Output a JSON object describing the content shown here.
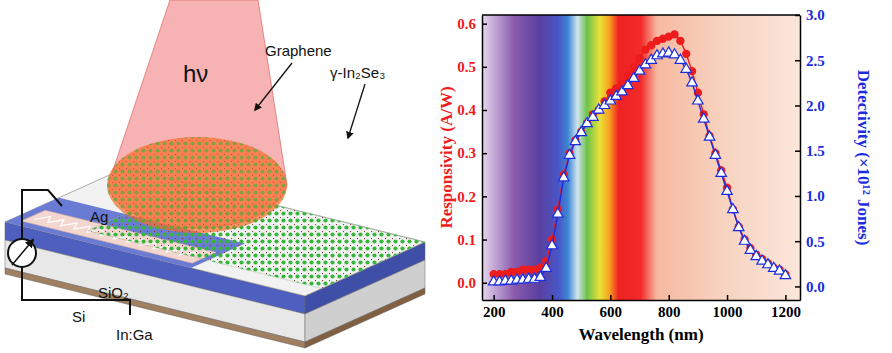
{
  "chart_data": {
    "type": "line",
    "x_label": "Wavelength (nm)",
    "y_label": "Responsivity (A/W)",
    "y2_label": "Detectivity (×10¹² Jones)",
    "x": [
      200,
      220,
      240,
      260,
      280,
      300,
      320,
      340,
      360,
      380,
      400,
      420,
      440,
      460,
      480,
      500,
      520,
      540,
      560,
      580,
      600,
      620,
      640,
      660,
      680,
      700,
      720,
      740,
      760,
      780,
      800,
      820,
      840,
      860,
      880,
      900,
      920,
      940,
      960,
      980,
      1000,
      1020,
      1040,
      1060,
      1080,
      1100,
      1120,
      1140,
      1160,
      1180,
      1200
    ],
    "series": [
      {
        "name": "Responsivity",
        "color": "#ee1c1c",
        "marker": "circle",
        "line_style": "solid",
        "values": [
          0.02,
          0.02,
          0.02,
          0.025,
          0.025,
          0.03,
          0.03,
          0.03,
          0.035,
          0.05,
          0.1,
          0.17,
          0.25,
          0.3,
          0.33,
          0.35,
          0.37,
          0.39,
          0.4,
          0.42,
          0.44,
          0.45,
          0.46,
          0.48,
          0.5,
          0.52,
          0.54,
          0.55,
          0.56,
          0.565,
          0.57,
          0.575,
          0.56,
          0.53,
          0.49,
          0.44,
          0.39,
          0.34,
          0.3,
          0.26,
          0.22,
          0.17,
          0.13,
          0.1,
          0.08,
          0.065,
          0.055,
          0.045,
          0.035,
          0.03,
          0.02
        ]
      },
      {
        "name": "Detectivity",
        "color": "#1a2ee0",
        "marker": "triangle-open",
        "line_style": "solid",
        "axis": "y2",
        "values": [
          0.05,
          0.05,
          0.06,
          0.06,
          0.07,
          0.07,
          0.08,
          0.08,
          0.1,
          0.2,
          0.45,
          0.8,
          1.2,
          1.45,
          1.6,
          1.7,
          1.8,
          1.87,
          1.95,
          2.0,
          2.05,
          2.1,
          2.15,
          2.22,
          2.3,
          2.38,
          2.45,
          2.5,
          2.55,
          2.57,
          2.58,
          2.56,
          2.5,
          2.4,
          2.25,
          2.05,
          1.85,
          1.65,
          1.45,
          1.25,
          1.05,
          0.85,
          0.65,
          0.5,
          0.4,
          0.33,
          0.28,
          0.24,
          0.2,
          0.17,
          0.12
        ]
      }
    ],
    "xlim": [
      160,
      1250
    ],
    "xticks": [
      200,
      400,
      600,
      800,
      1000,
      1200
    ],
    "ylim": [
      -0.04,
      0.62
    ],
    "yticks": [
      {
        "value": 0,
        "label": "0.0"
      },
      {
        "value": 0.1,
        "label": "0.1"
      },
      {
        "value": 0.2,
        "label": "0.2"
      },
      {
        "value": 0.3,
        "label": "0.3"
      },
      {
        "value": 0.4,
        "label": "0.4"
      },
      {
        "value": 0.5,
        "label": "0.5"
      },
      {
        "value": 0.6,
        "label": "0.6"
      }
    ],
    "y2lim": [
      -0.15,
      3.0
    ],
    "y2ticks": [
      {
        "value": 0,
        "label": "0.0"
      },
      {
        "value": 0.5,
        "label": "0.5"
      },
      {
        "value": 1,
        "label": "1.0"
      },
      {
        "value": 1.5,
        "label": "1.5"
      },
      {
        "value": 2,
        "label": "2.0"
      },
      {
        "value": 2.5,
        "label": "2.5"
      },
      {
        "value": 3,
        "label": "3.0"
      }
    ],
    "grid": false,
    "legend": false
  },
  "diagram": {
    "labels": [
      "hν",
      "Graphene",
      "γ-In₂Se₃",
      "Ag",
      "SiO₂",
      "Si",
      "In:Ga"
    ]
  }
}
